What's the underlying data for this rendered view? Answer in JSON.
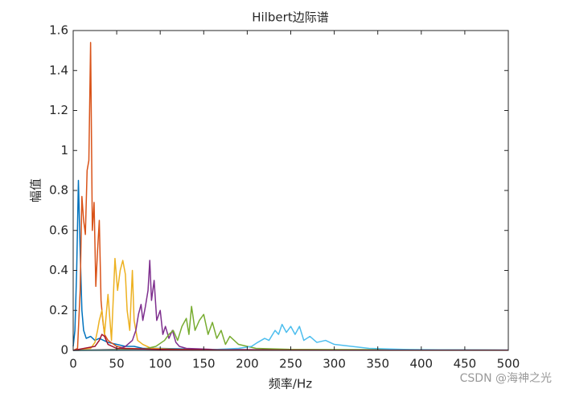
{
  "chart_data": {
    "type": "line",
    "title": "Hilbert边际谱",
    "x_label": "频率/Hz",
    "y_label": "幅值",
    "watermark": "CSDN @海神之光",
    "xlim": [
      0,
      500
    ],
    "xticks": [
      0,
      50,
      100,
      150,
      200,
      250,
      300,
      350,
      400,
      450,
      500
    ],
    "ylim": [
      0,
      1.6
    ],
    "yticks": [
      0,
      0.2,
      0.4,
      0.6,
      0.8,
      1,
      1.2,
      1.4,
      1.6
    ],
    "grid": false,
    "box": true,
    "series": [
      {
        "color": "#0072BD",
        "x": [
          0,
          2,
          4,
          6,
          8,
          10,
          12,
          15,
          20,
          25,
          30,
          35,
          40,
          50,
          60,
          70,
          80,
          100,
          150,
          200,
          300,
          400,
          500
        ],
        "values": [
          0.02,
          0.1,
          0.4,
          0.85,
          0.5,
          0.2,
          0.1,
          0.06,
          0.07,
          0.05,
          0.06,
          0.05,
          0.04,
          0.03,
          0.02,
          0.02,
          0.01,
          0.01,
          0.005,
          0.003,
          0.002,
          0.001,
          0.001
        ]
      },
      {
        "color": "#D95319",
        "x": [
          0,
          5,
          8,
          10,
          12,
          14,
          16,
          18,
          20,
          22,
          24,
          26,
          28,
          30,
          32,
          34,
          36,
          40,
          50,
          60,
          100,
          200,
          500
        ],
        "values": [
          0,
          0.01,
          0.3,
          0.77,
          0.65,
          0.58,
          0.9,
          0.95,
          1.54,
          0.6,
          0.74,
          0.32,
          0.5,
          0.65,
          0.25,
          0.15,
          0.08,
          0.05,
          0.02,
          0.01,
          0.005,
          0.002,
          0.001
        ]
      },
      {
        "color": "#EDB120",
        "x": [
          0,
          20,
          25,
          28,
          30,
          33,
          36,
          40,
          44,
          48,
          51,
          54,
          57,
          60,
          62,
          65,
          68,
          70,
          74,
          80,
          90,
          120,
          200,
          500
        ],
        "values": [
          0,
          0.01,
          0.04,
          0.1,
          0.15,
          0.2,
          0.08,
          0.28,
          0.05,
          0.46,
          0.3,
          0.4,
          0.45,
          0.38,
          0.2,
          0.1,
          0.4,
          0.15,
          0.05,
          0.03,
          0.01,
          0.005,
          0.002,
          0.001
        ]
      },
      {
        "color": "#7E2F8E",
        "x": [
          0,
          50,
          60,
          68,
          72,
          75,
          78,
          80,
          83,
          86,
          88,
          90,
          93,
          96,
          100,
          103,
          106,
          110,
          114,
          118,
          122,
          130,
          160,
          250,
          500
        ],
        "values": [
          0,
          0.005,
          0.02,
          0.05,
          0.1,
          0.18,
          0.23,
          0.15,
          0.22,
          0.3,
          0.45,
          0.25,
          0.35,
          0.15,
          0.2,
          0.08,
          0.12,
          0.06,
          0.1,
          0.04,
          0.02,
          0.01,
          0.005,
          0.002,
          0.001
        ]
      },
      {
        "color": "#77AC30",
        "x": [
          0,
          80,
          95,
          105,
          110,
          115,
          120,
          125,
          130,
          133,
          136,
          140,
          145,
          150,
          155,
          160,
          165,
          170,
          175,
          180,
          190,
          200,
          210,
          250,
          500
        ],
        "values": [
          0,
          0.005,
          0.02,
          0.05,
          0.08,
          0.1,
          0.05,
          0.12,
          0.16,
          0.08,
          0.22,
          0.1,
          0.15,
          0.18,
          0.08,
          0.14,
          0.06,
          0.1,
          0.03,
          0.07,
          0.03,
          0.02,
          0.01,
          0.005,
          0.001
        ]
      },
      {
        "color": "#4DBEEE",
        "x": [
          0,
          150,
          190,
          205,
          212,
          220,
          225,
          232,
          236,
          240,
          245,
          250,
          255,
          260,
          265,
          272,
          280,
          290,
          300,
          320,
          340,
          380,
          420,
          500
        ],
        "values": [
          0,
          0.002,
          0.01,
          0.02,
          0.04,
          0.06,
          0.05,
          0.1,
          0.08,
          0.13,
          0.09,
          0.12,
          0.08,
          0.12,
          0.05,
          0.07,
          0.04,
          0.05,
          0.03,
          0.02,
          0.01,
          0.005,
          0.003,
          0.002
        ]
      },
      {
        "color": "#A2142F",
        "x": [
          0,
          25,
          30,
          33,
          36,
          40,
          50,
          100,
          150,
          200,
          300,
          500
        ],
        "values": [
          0,
          0.02,
          0.05,
          0.08,
          0.07,
          0.03,
          0.01,
          0.005,
          0.003,
          0.002,
          0.001,
          0.001
        ]
      }
    ]
  }
}
